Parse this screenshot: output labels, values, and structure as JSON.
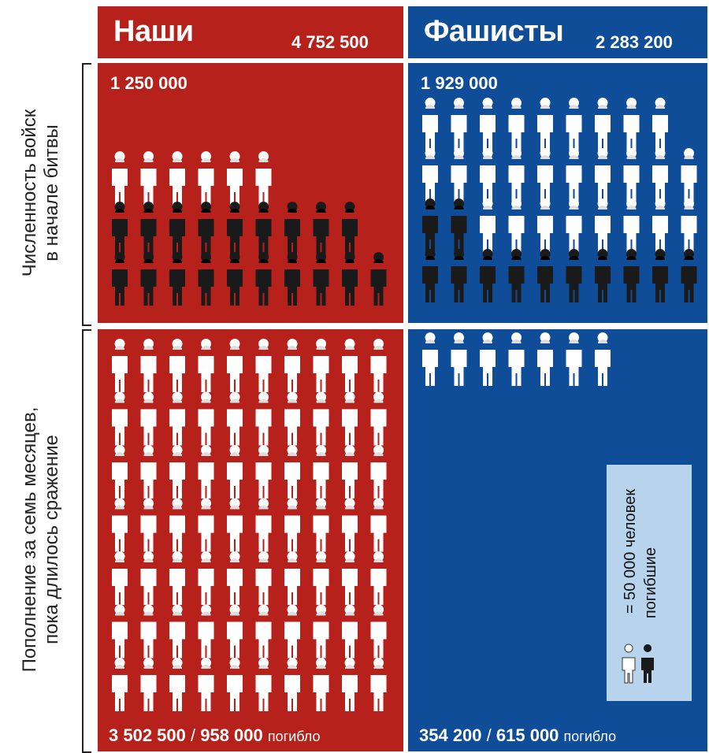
{
  "sides": {
    "ours": {
      "title": "Наши",
      "total": "4 752 500",
      "initial": "1 250 000",
      "reinforced": "3 502 500",
      "killed": "958 000",
      "killed_label": "погибло",
      "color": "#b7211c"
    },
    "fascists": {
      "title": "Фашисты",
      "total": "2 283 200",
      "initial": "1 929 000",
      "reinforced": "354 200",
      "killed": "615 000",
      "killed_label": "погибло",
      "color": "#0f4d98"
    }
  },
  "row_labels": {
    "top": [
      "Численность войск",
      "в начале битвы"
    ],
    "bottom": [
      "Пополнение за семь месяцев,",
      "пока длилось сражение"
    ]
  },
  "legend": {
    "unit": "= 50 000 человек",
    "killed": "погибшие",
    "bg_color": "#b8d4ec"
  },
  "chart_data": {
    "type": "table",
    "unit_per_figure": 50000,
    "figure_colors": {
      "alive": "#ffffff",
      "killed": "#1a1a1a"
    },
    "panels": [
      {
        "side": "ours",
        "section": "initial",
        "rows": [
          {
            "white": 6,
            "black": 0
          },
          {
            "white": 0,
            "black": 9
          },
          {
            "white": 0,
            "black": 10
          }
        ]
      },
      {
        "side": "fascists",
        "section": "initial",
        "rows": [
          {
            "white": 9,
            "black": 0
          },
          {
            "white": 10,
            "black": 0
          },
          {
            "white": 8,
            "black": 2
          },
          {
            "white": 0,
            "black": 10
          }
        ]
      },
      {
        "side": "ours",
        "section": "reinforcement",
        "rows": [
          {
            "white": 10,
            "black": 0
          },
          {
            "white": 10,
            "black": 0
          },
          {
            "white": 10,
            "black": 0
          },
          {
            "white": 10,
            "black": 0
          },
          {
            "white": 10,
            "black": 0
          },
          {
            "white": 10,
            "black": 0
          },
          {
            "white": 10,
            "black": 0
          }
        ]
      },
      {
        "side": "fascists",
        "section": "reinforcement",
        "rows": [
          {
            "white": 7,
            "black": 0
          }
        ]
      }
    ]
  }
}
